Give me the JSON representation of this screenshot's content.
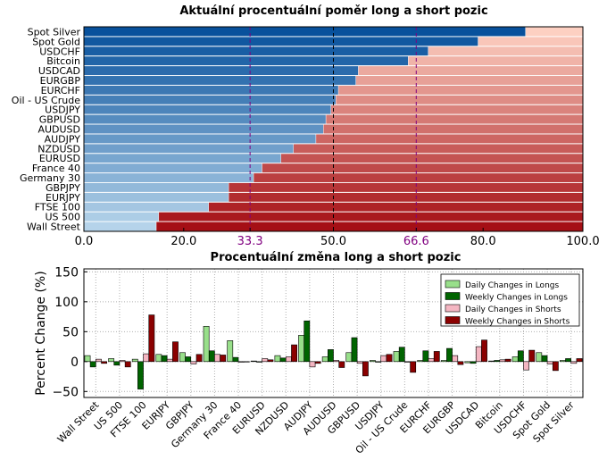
{
  "chart_data": [
    {
      "type": "bar",
      "orientation": "horizontal-stacked",
      "title": "Aktuální procentuální poměr long a short pozic",
      "categories": [
        "Spot Silver",
        "Spot Gold",
        "USDCHF",
        "Bitcoin",
        "USDCAD",
        "EURGBP",
        "EURCHF",
        "Oil - US Crude",
        "USDJPY",
        "GBPUSD",
        "AUDUSD",
        "AUDJPY",
        "NZDUSD",
        "EURUSD",
        "France 40",
        "Germany 30",
        "GBPJPY",
        "EURJPY",
        "FTSE 100",
        "US 500",
        "Wall Street"
      ],
      "series": [
        {
          "values": [
            88.5,
            79.0,
            69.0,
            65.0,
            55.0,
            54.5,
            51.0,
            50.5,
            49.5,
            48.5,
            48.0,
            46.5,
            42.0,
            39.5,
            35.7,
            34.0,
            29.0,
            29.0,
            25.0,
            15.0,
            14.5
          ]
        },
        {
          "values": [
            11.5,
            21.0,
            31.0,
            35.0,
            45.0,
            45.5,
            49.0,
            49.5,
            50.5,
            51.5,
            52.0,
            53.5,
            58.0,
            60.5,
            64.3,
            66.0,
            71.0,
            71.0,
            75.0,
            85.0,
            85.5
          ]
        }
      ],
      "xlim": [
        0,
        100
      ],
      "xticks": [
        "0.0",
        "20.0",
        "33.3",
        "50.0",
        "66.6",
        "80.0",
        "100.0"
      ],
      "reference_lines": [
        {
          "x": 33.3,
          "color": "#800080",
          "style": "dashed"
        },
        {
          "x": 50.0,
          "color": "#000000",
          "style": "dashed"
        },
        {
          "x": 66.6,
          "color": "#800080",
          "style": "dashed"
        }
      ],
      "colors": {
        "long_light": "#b5d3ea",
        "long_dark": "#08519c",
        "short_light": "#fdd0c2",
        "short_dark": "#a50f15",
        "purple": "#800080"
      }
    },
    {
      "type": "bar",
      "title": "Procentuální změna long a short pozic",
      "ylabel": "Percent Change (%)",
      "ylim": [
        -60,
        155
      ],
      "yticks": [
        "−50",
        "0",
        "50",
        "100",
        "150"
      ],
      "grid": true,
      "legend_position": "top-right",
      "categories": [
        "Wall Street",
        "US 500",
        "FTSE 100",
        "EURJPY",
        "GBPJPY",
        "Germany 30",
        "France 40",
        "EURUSD",
        "NZDUSD",
        "AUDJPY",
        "AUDUSD",
        "GBPUSD",
        "USDJPY",
        "Oil - US Crude",
        "EURCHF",
        "EURGBP",
        "USDCAD",
        "Bitcoin",
        "USDCHF",
        "Spot Gold",
        "Spot Silver"
      ],
      "series": [
        {
          "name": "Daily Changes in Longs",
          "color": "#98df8a",
          "values": [
            10,
            5,
            4,
            12,
            15,
            59,
            35,
            1,
            10,
            44,
            8,
            15,
            2,
            17,
            2,
            2,
            -2,
            1,
            8,
            15,
            2
          ]
        },
        {
          "name": "Weekly Changes in Longs",
          "color": "#006400",
          "values": [
            -9,
            -6,
            -46,
            10,
            8,
            18,
            7,
            -1,
            6,
            68,
            20,
            40,
            -1,
            24,
            18,
            22,
            -3,
            2,
            18,
            10,
            5
          ]
        },
        {
          "name": "Daily Changes in Shorts",
          "color": "#f4b6c2",
          "values": [
            4,
            2,
            13,
            4,
            -4,
            12,
            -1,
            5,
            8,
            -9,
            2,
            -3,
            10,
            -1,
            5,
            10,
            25,
            3,
            -14,
            -4,
            -3
          ]
        },
        {
          "name": "Weekly Changes in Shorts",
          "color": "#8b0000",
          "values": [
            -3,
            -9,
            78,
            33,
            12,
            11,
            0,
            3,
            28,
            -3,
            -10,
            -24,
            12,
            -18,
            17,
            -5,
            36,
            4,
            19,
            -15,
            5
          ]
        }
      ]
    }
  ]
}
